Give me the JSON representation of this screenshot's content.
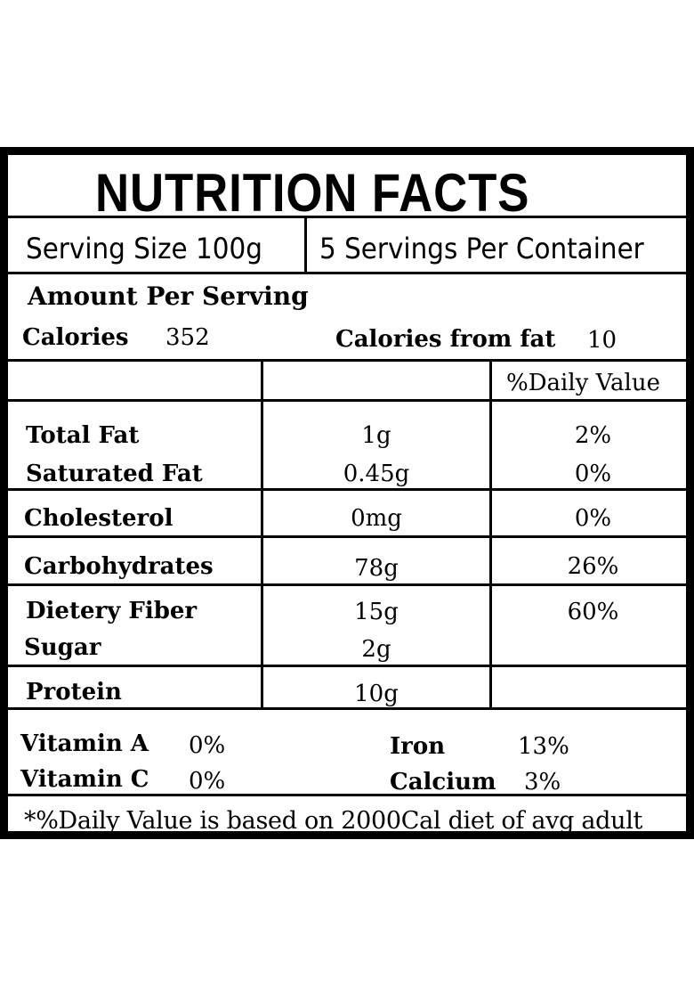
{
  "title": "NUTRITION FACTS",
  "serving": {
    "size": "Serving Size 100g",
    "per_container": "5 Servings Per Container"
  },
  "amount": {
    "heading": "Amount Per Serving",
    "calories_label": "Calories",
    "calories_value": "352",
    "fat_calories_label": "Calories from fat",
    "fat_calories_value": "10"
  },
  "table": {
    "dv_header": "%Daily Value",
    "rows": [
      {
        "name": "Total Fat",
        "amount": "1g",
        "dv": "2%"
      },
      {
        "name": "Saturated Fat",
        "amount": "0.45g",
        "dv": "0%"
      },
      {
        "name": "Cholesterol",
        "amount": "0mg",
        "dv": "0%"
      },
      {
        "name": "Carbohydrates",
        "amount": "78g",
        "dv": "26%"
      },
      {
        "name": "Dietery Fiber",
        "amount": "15g",
        "dv": "60%"
      },
      {
        "name": "Sugar",
        "amount": "2g",
        "dv": ""
      },
      {
        "name": "Protein",
        "amount": "10g",
        "dv": ""
      }
    ]
  },
  "vitamins": {
    "vitamin_a_label": "Vitamin A",
    "vitamin_a_value": "0%",
    "vitamin_c_label": "Vitamin C",
    "vitamin_c_value": "0%",
    "iron_label": "Iron",
    "iron_value": "13%",
    "calcium_label": "Calcium",
    "calcium_value": "3%"
  },
  "footnote": "*%Daily Value is based on 2000Cal diet of avg adult"
}
